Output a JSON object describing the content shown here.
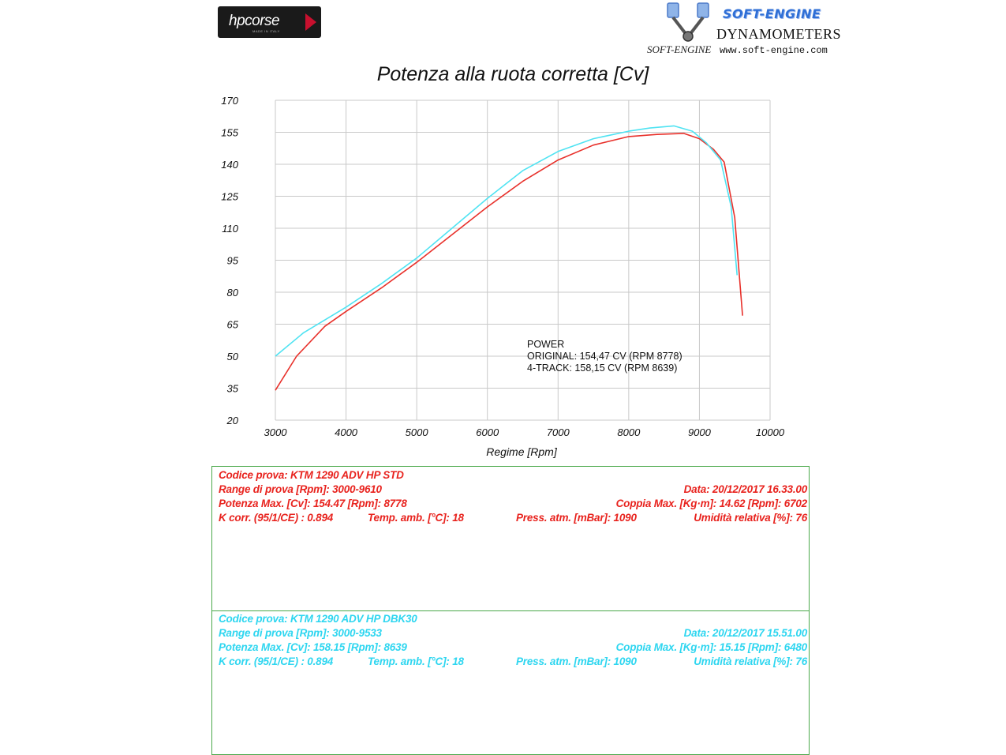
{
  "logos": {
    "hpcorse_text": "hpcorse",
    "hpcorse_sub": "MADE IN ITALY",
    "softengine_title": "SOFT-ENGINE",
    "softengine_dyn": "DYNAMOMETERS",
    "softengine_web": "www.soft-engine.com",
    "softengine_brand": "SOFT-ENGINE"
  },
  "chart_data": {
    "type": "line",
    "title": "Potenza alla ruota corretta [Cv]",
    "xlabel": "Regime [Rpm]",
    "ylabel": "",
    "xlim": [
      3000,
      10000
    ],
    "ylim": [
      20,
      170
    ],
    "xticks": [
      "3000",
      "4000",
      "5000",
      "6000",
      "7000",
      "8000",
      "9000",
      "10000"
    ],
    "yticks": [
      "170",
      "155",
      "140",
      "125",
      "110",
      "95",
      "80",
      "65",
      "50",
      "35",
      "20"
    ],
    "grid": true,
    "annotation": [
      "POWER",
      "ORIGINAL: 154,47 CV (RPM 8778)",
      "4-TRACK: 158,15 CV (RPM 8639)"
    ],
    "series": [
      {
        "color": "#e8302a",
        "x": [
          3000,
          3300,
          3700,
          4000,
          4500,
          5000,
          5500,
          6000,
          6500,
          7000,
          7500,
          8000,
          8400,
          8778,
          9000,
          9200,
          9350,
          9500,
          9610
        ],
        "y": [
          34,
          50,
          64,
          71,
          82,
          94,
          107,
          120,
          132,
          142,
          149,
          153,
          154,
          154.5,
          152,
          147,
          141,
          115,
          69
        ]
      },
      {
        "color": "#4fe3f2",
        "x": [
          3000,
          3400,
          4000,
          4500,
          5000,
          5500,
          6000,
          6500,
          7000,
          7500,
          8000,
          8300,
          8639,
          8900,
          9100,
          9300,
          9450,
          9533
        ],
        "y": [
          50,
          61,
          73,
          84,
          96,
          110,
          124,
          137,
          146,
          152,
          155.5,
          157,
          158,
          155.5,
          150,
          142,
          120,
          88
        ]
      }
    ]
  },
  "tests": [
    {
      "color": "#e8231e",
      "codice": "Codice prova: KTM 1290 ADV HP STD",
      "range": "Range di prova [Rpm]: 3000-9610",
      "data": "Data: 20/12/2017   16.33.00",
      "potenza": "Potenza Max. [Cv]: 154.47   [Rpm]: 8778",
      "coppia": "Coppia Max. [Kg·m]: 14.62   [Rpm]: 6702",
      "kcorr": "K corr. (95/1/CE) : 0.894",
      "temp": "Temp. amb. [°C]: 18",
      "press": "Press. atm. [mBar]: 1090",
      "umid": "Umidità relativa [%]: 76"
    },
    {
      "color": "#2ed6f0",
      "codice": "Codice prova: KTM 1290 ADV HP DBK30",
      "range": "Range di prova [Rpm]: 3000-9533",
      "data": "Data: 20/12/2017   15.51.00",
      "potenza": "Potenza Max. [Cv]: 158.15   [Rpm]: 8639",
      "coppia": "Coppia Max. [Kg·m]: 15.15   [Rpm]: 6480",
      "kcorr": "K corr. (95/1/CE) : 0.894",
      "temp": "Temp. amb. [°C]: 18",
      "press": "Press. atm. [mBar]: 1090",
      "umid": "Umidità relativa [%]: 76"
    }
  ]
}
